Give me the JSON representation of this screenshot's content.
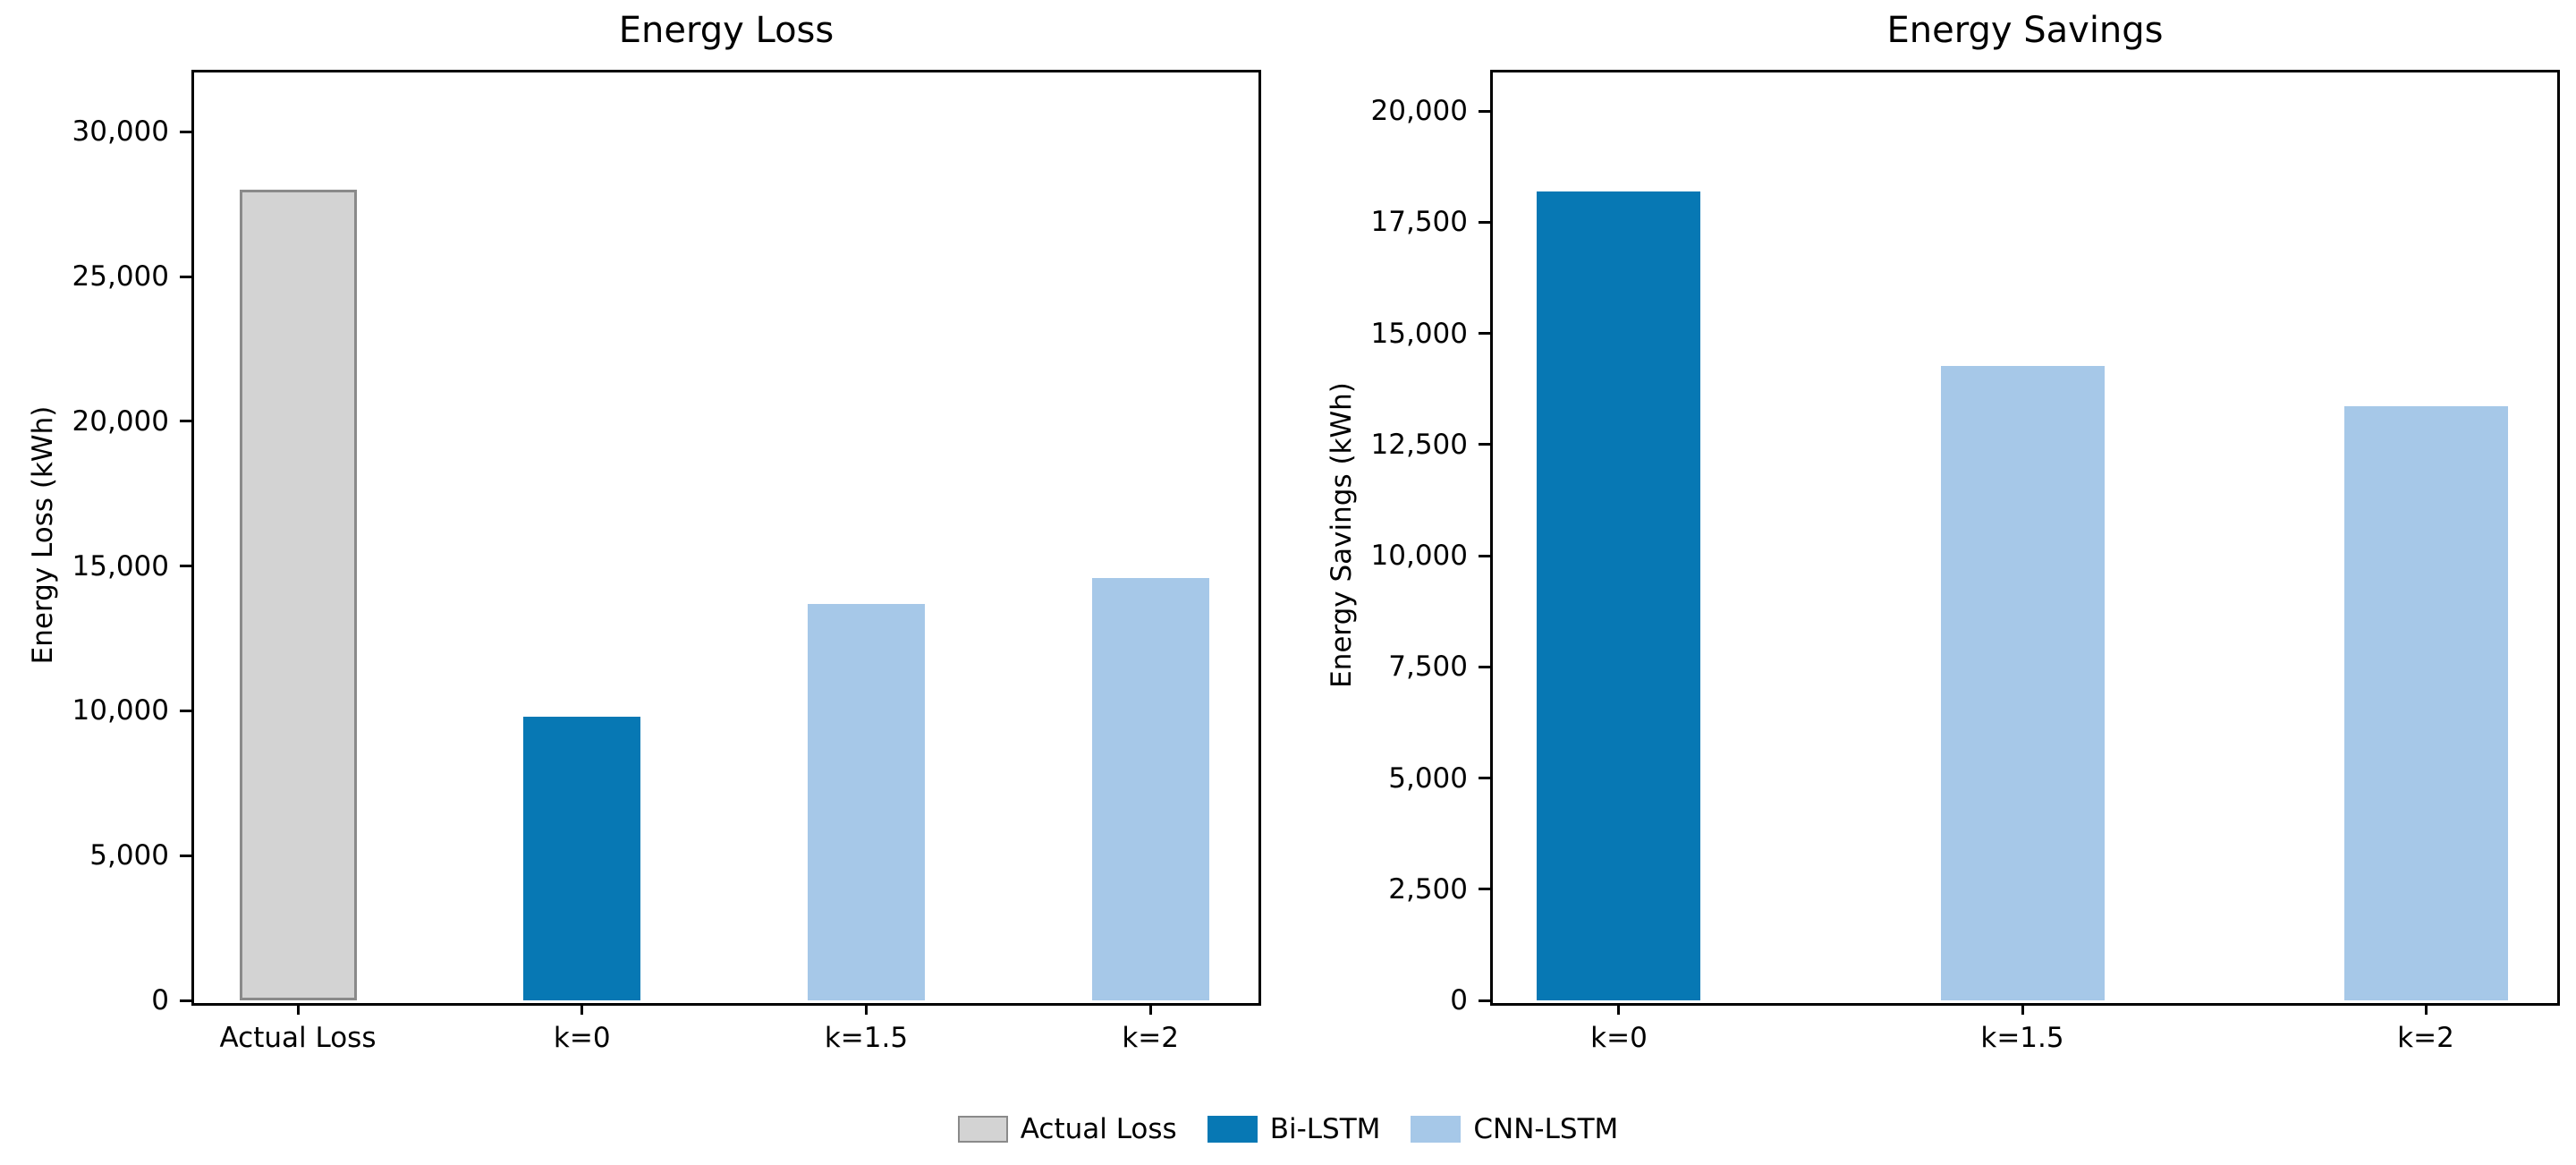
{
  "figure": {
    "background": "#ffffff",
    "text_color": "#000000",
    "spine_color": "#000000",
    "legend": {
      "position": "lower center",
      "items": [
        {
          "label": "Actual Loss",
          "color": "#d3d3d3",
          "edge": "#8a8a8a"
        },
        {
          "label": "Bi-LSTM",
          "color": "#0778b4",
          "edge": null
        },
        {
          "label": "CNN-LSTM",
          "color": "#a6c8e8",
          "edge": null
        }
      ]
    }
  },
  "chart_data": [
    {
      "type": "bar",
      "title": "Energy Loss",
      "xlabel": "",
      "ylabel": "Energy Loss (kWh)",
      "categories": [
        "Actual Loss",
        "k=0",
        "k=1.5",
        "k=2"
      ],
      "values": [
        28000,
        9800,
        13700,
        14600
      ],
      "bar_series": [
        "Actual Loss",
        "Bi-LSTM",
        "CNN-LSTM",
        "CNN-LSTM"
      ],
      "bar_colors": [
        "#d3d3d3",
        "#0778b4",
        "#a6c8e8",
        "#a6c8e8"
      ],
      "bar_edges": [
        "#8a8a8a",
        null,
        null,
        null
      ],
      "unit": "kWh",
      "ylim": [
        0,
        32140
      ],
      "yticks": [
        0,
        5000,
        10000,
        15000,
        20000,
        25000,
        30000
      ],
      "ytick_labels": [
        "0",
        "5,000",
        "10,000",
        "15,000",
        "20,000",
        "25,000",
        "30,000"
      ],
      "grid": false
    },
    {
      "type": "bar",
      "title": "Energy Savings",
      "xlabel": "",
      "ylabel": "Energy Savings (kWh)",
      "categories": [
        "k=0",
        "k=1.5",
        "k=2"
      ],
      "values": [
        18200,
        14270,
        13360
      ],
      "bar_series": [
        "Bi-LSTM",
        "CNN-LSTM",
        "CNN-LSTM"
      ],
      "bar_colors": [
        "#0778b4",
        "#a6c8e8",
        "#a6c8e8"
      ],
      "bar_edges": [
        null,
        null,
        null
      ],
      "unit": "kWh",
      "ylim": [
        0,
        20930
      ],
      "yticks": [
        0,
        2500,
        5000,
        7500,
        10000,
        12500,
        15000,
        17500,
        20000
      ],
      "ytick_labels": [
        "0",
        "2,500",
        "5,000",
        "7,500",
        "10,000",
        "12,500",
        "15,000",
        "17,500",
        "20,000"
      ],
      "grid": false
    }
  ]
}
